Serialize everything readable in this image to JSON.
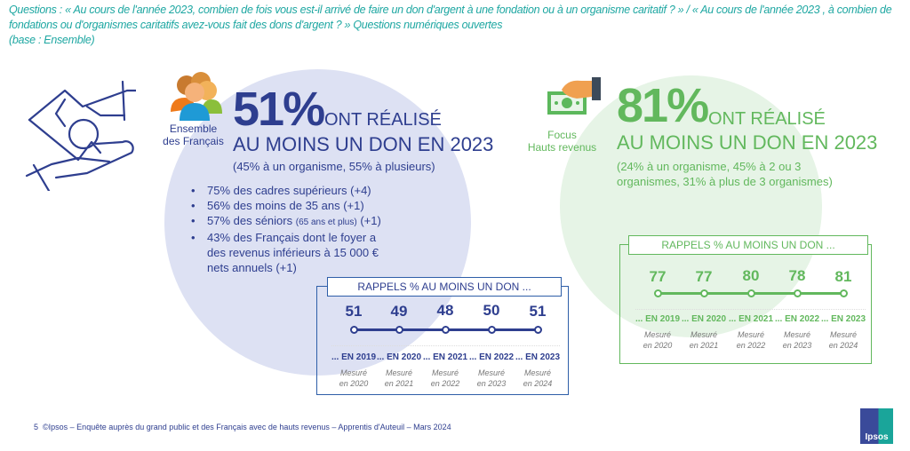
{
  "question": "Questions : « Au cours de l'année 2023, combien de fois vous est-il arrivé de faire un don d'argent à une fondation ou à un organisme caritatif ? » / « Au cours de l'année 2023 , à combien de fondations ou d'organismes caritatifs avez-vous fait des dons d'argent ? » Questions numériques ouvertes",
  "base": "(base : Ensemble)",
  "colors": {
    "blue": "#2e3e8f",
    "blue_circle": "#dde1f3",
    "green": "#62b85d",
    "green_circle": "#e6f4e6",
    "teal": "#1ea7a2"
  },
  "left": {
    "icon": "people-group-icon",
    "group_line1": "Ensemble",
    "group_line2": "des Français",
    "pct": "51%",
    "ont": "ONT RÉALISÉ",
    "headline": "AU MOINS UN DON EN 2023",
    "sub": "(45% à un organisme, 55% à plusieurs)",
    "bullets": [
      "75% des cadres supérieurs (+4)",
      "56% des moins de 35 ans (+1)",
      "57% des séniors",
      "(65 ans et plus)",
      "(+1)",
      "43% des Français dont le foyer a des revenus inférieurs à 15 000 € nets annuels (+1)"
    ],
    "recap": {
      "title": "RAPPELS % AU MOINS UN DON ...",
      "points": [
        {
          "value": "51",
          "year": "... EN 2019",
          "m1": "Mesuré",
          "m2": "en 2020"
        },
        {
          "value": "49",
          "year": "... EN 2020",
          "m1": "Mesuré",
          "m2": "en 2021"
        },
        {
          "value": "48",
          "year": "... EN 2021",
          "m1": "Mesuré",
          "m2": "en 2022"
        },
        {
          "value": "50",
          "year": "... EN 2022",
          "m1": "Mesuré",
          "m2": "en 2023"
        },
        {
          "value": "51",
          "year": "... EN 2023",
          "m1": "Mesuré",
          "m2": "en 2024"
        }
      ]
    }
  },
  "right": {
    "icon": "money-hand-icon",
    "group_line1": "Focus",
    "group_line2": "Hauts revenus",
    "pct": "81%",
    "ont": "ONT RÉALISÉ",
    "headline": "AU MOINS UN DON EN 2023",
    "sub": "(24% à un organisme, 45% à 2 ou 3 organismes, 31% à plus de 3 organismes)",
    "recap": {
      "title": "RAPPELS % AU MOINS UN DON ...",
      "points": [
        {
          "value": "77",
          "year": "... EN 2019",
          "m1": "Mesuré",
          "m2": "en 2020"
        },
        {
          "value": "77",
          "year": "... EN 2020",
          "m1": "Mesuré",
          "m2": "en 2021"
        },
        {
          "value": "80",
          "year": "... EN 2021",
          "m1": "Mesuré",
          "m2": "en 2022"
        },
        {
          "value": "78",
          "year": "... EN 2022",
          "m1": "Mesuré",
          "m2": "en 2023"
        },
        {
          "value": "81",
          "year": "... EN 2023",
          "m1": "Mesuré",
          "m2": "en 2024"
        }
      ]
    }
  },
  "footer": {
    "page": "5",
    "text": "©Ipsos – Enquête auprès du grand public et des Français avec de hauts revenus – Apprentis d'Auteuil – Mars 2024",
    "logo": "Ipsos"
  }
}
